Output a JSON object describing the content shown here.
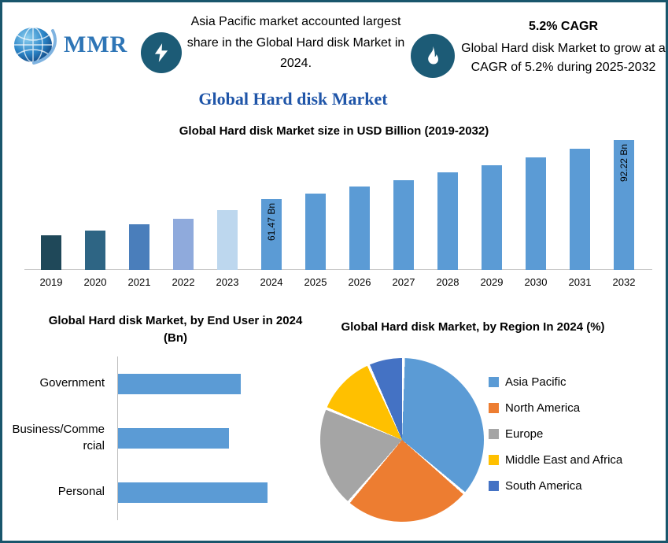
{
  "header": {
    "logo_text": "MMR",
    "left_note": "Asia Pacific market accounted largest share in the Global Hard disk Market in 2024.",
    "cagr_title": "5.2% CAGR",
    "cagr_note": "Global Hard disk Market to grow at a CAGR of 5.2% during 2025-2032"
  },
  "page_title": "Global Hard disk Market",
  "colors": {
    "border": "#19566C",
    "badge": "#1C5B76",
    "steel_blue": "#5B9BD5",
    "title_blue": "#1F55A8"
  },
  "chart_data": [
    {
      "type": "bar",
      "title": "Global Hard disk Market size in USD Billion (2019-2032)",
      "categories": [
        "2019",
        "2020",
        "2021",
        "2022",
        "2023",
        "2024",
        "2025",
        "2026",
        "2027",
        "2028",
        "2029",
        "2030",
        "2031",
        "2032"
      ],
      "values": [
        43.0,
        45.5,
        48.5,
        51.5,
        56.0,
        61.47,
        64.67,
        68.03,
        71.57,
        75.29,
        79.2,
        83.32,
        87.66,
        92.22
      ],
      "bar_colors": [
        "#1F4859",
        "#2E6584",
        "#4A7EBB",
        "#8FAADC",
        "#BDD7EE",
        "#5B9BD5",
        "#5B9BD5",
        "#5B9BD5",
        "#5B9BD5",
        "#5B9BD5",
        "#5B9BD5",
        "#5B9BD5",
        "#5B9BD5",
        "#5B9BD5"
      ],
      "annotations": [
        {
          "category": "2024",
          "label": "61.47 Bn"
        },
        {
          "category": "2032",
          "label": "92.22 Bn"
        }
      ],
      "ylabel": "USD Billion",
      "xlabel": "",
      "ylim": [
        25,
        95
      ],
      "grid": false,
      "legend": false
    },
    {
      "type": "bar",
      "orientation": "horizontal",
      "title": "Global Hard disk Market, by End User in 2024 (Bn)",
      "categories": [
        "Government",
        "Business/Commercial",
        "Personal"
      ],
      "values": [
        19.7,
        17.9,
        24.0
      ],
      "bar_color": "#5B9BD5",
      "xlabel": "",
      "ylabel": "",
      "xlim": [
        0,
        30
      ],
      "grid": false,
      "legend": false
    },
    {
      "type": "pie",
      "title": "Global Hard disk Market, by Region In 2024 (%)",
      "labels": [
        "Asia Pacific",
        "North America",
        "Europe",
        "Middle East and Africa",
        "South America"
      ],
      "values": [
        36,
        25,
        20,
        12,
        7
      ],
      "colors": [
        "#5B9BD5",
        "#ED7D31",
        "#A5A5A5",
        "#FFC000",
        "#4472C4"
      ],
      "legend_position": "right"
    }
  ]
}
